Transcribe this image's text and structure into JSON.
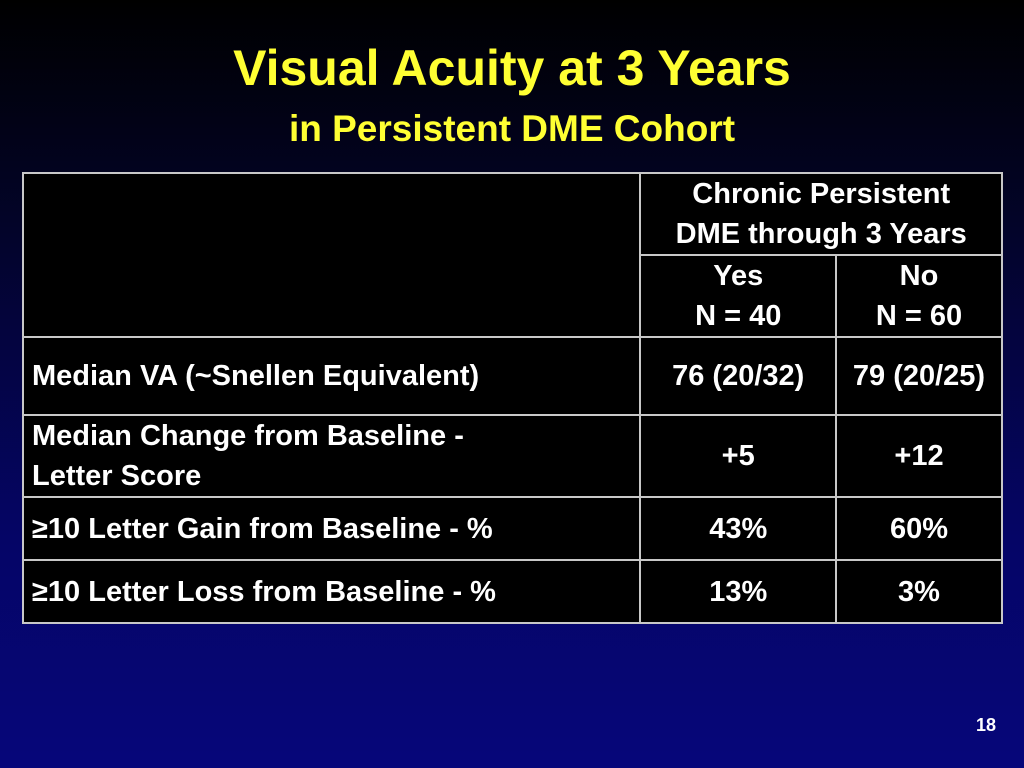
{
  "slide": {
    "title": "Visual Acuity at 3 Years",
    "subtitle": "in Persistent DME Cohort",
    "page_number": "18"
  },
  "table": {
    "group_header": {
      "line1": "Chronic Persistent",
      "line2": "DME through 3 Years"
    },
    "columns": [
      {
        "label": "Yes",
        "n": "N = 40"
      },
      {
        "label": "No",
        "n": "N = 60"
      }
    ],
    "rows": [
      {
        "label": "Median VA (~Snellen Equivalent)",
        "yes": "76 (20/32)",
        "no": "79 (20/25)"
      },
      {
        "label_line1": "Median Change from Baseline -",
        "label_line2": "Letter Score",
        "yes": "+5",
        "no": "+12"
      },
      {
        "label": "≥10 Letter Gain from Baseline - %",
        "yes": "43%",
        "no": "60%"
      },
      {
        "label": "≥10 Letter Loss from Baseline - %",
        "yes": "13%",
        "no": "3%"
      }
    ]
  }
}
